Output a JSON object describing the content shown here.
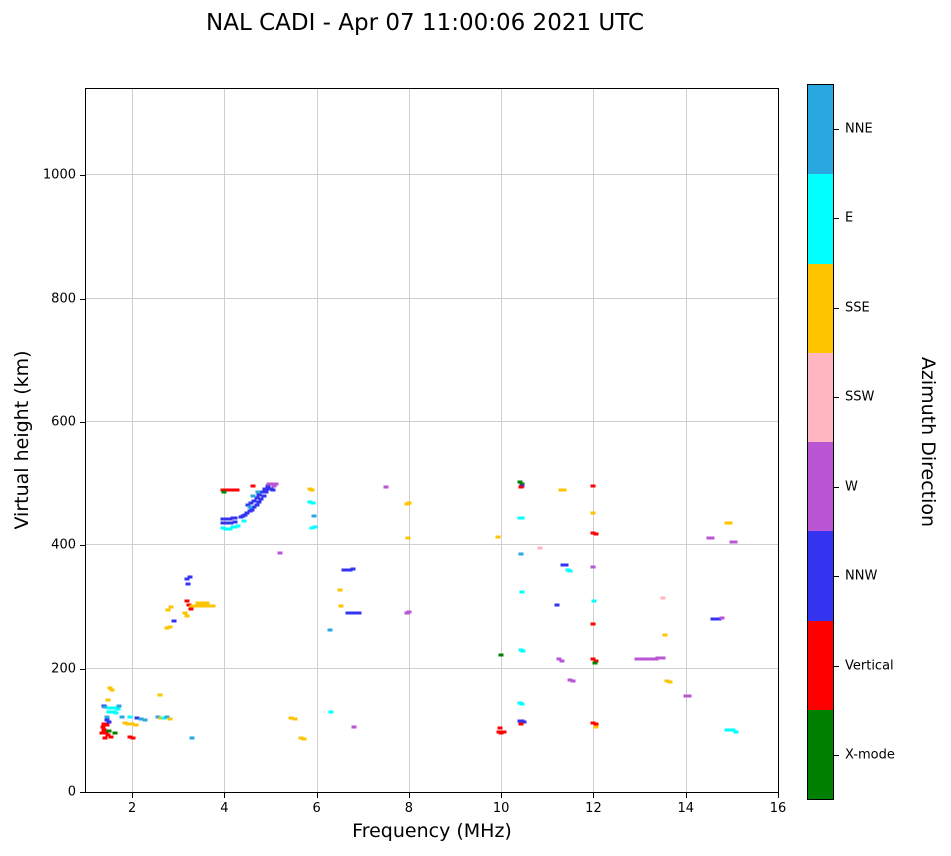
{
  "title": "NAL CADI - Apr 07 11:00:06 2021 UTC",
  "chart_data": {
    "type": "scatter",
    "title": "NAL CADI - Apr 07 11:00:06 2021 UTC",
    "xlabel": "Frequency (MHz)",
    "ylabel": "Virtual height (km)",
    "colorbar_label": "Azimuth Direction",
    "xlim": [
      1,
      16
    ],
    "ylim": [
      0,
      1140
    ],
    "xticks": [
      2,
      4,
      6,
      8,
      10,
      12,
      14,
      16
    ],
    "yticks": [
      0,
      200,
      400,
      600,
      800,
      1000
    ],
    "grid": true,
    "legend_position": "right-colorbar",
    "categories": [
      {
        "name": "NNE",
        "color": "#29A8E0"
      },
      {
        "name": "E",
        "color": "#00FFFF"
      },
      {
        "name": "SSE",
        "color": "#FFC400"
      },
      {
        "name": "SSW",
        "color": "#FFB6C1"
      },
      {
        "name": "W",
        "color": "#BA55D3"
      },
      {
        "name": "NNW",
        "color": "#3333F0"
      },
      {
        "name": "Vertical",
        "color": "#FF0000"
      },
      {
        "name": "X-mode",
        "color": "#008000"
      }
    ],
    "points": [
      [
        1.38,
        140,
        5
      ],
      [
        1.42,
        138,
        0
      ],
      [
        1.52,
        168,
        2
      ],
      [
        1.57,
        166,
        2
      ],
      [
        1.47,
        150,
        2
      ],
      [
        1.5,
        137,
        1
      ],
      [
        1.55,
        137,
        1
      ],
      [
        1.6,
        137,
        1
      ],
      [
        1.65,
        136,
        1
      ],
      [
        1.7,
        134,
        1
      ],
      [
        1.5,
        129,
        1
      ],
      [
        1.55,
        129,
        1
      ],
      [
        1.6,
        129,
        1
      ],
      [
        1.65,
        128,
        1
      ],
      [
        1.72,
        140,
        0
      ],
      [
        1.78,
        122,
        0
      ],
      [
        1.45,
        122,
        0
      ],
      [
        1.45,
        117,
        5
      ],
      [
        1.5,
        114,
        5
      ],
      [
        1.4,
        110,
        6
      ],
      [
        1.45,
        108,
        6
      ],
      [
        1.4,
        101,
        6
      ],
      [
        1.44,
        96,
        6
      ],
      [
        1.48,
        92,
        6
      ],
      [
        1.42,
        88,
        6
      ],
      [
        1.55,
        90,
        6
      ],
      [
        1.5,
        99,
        7
      ],
      [
        1.62,
        95,
        7
      ],
      [
        1.85,
        112,
        2
      ],
      [
        1.92,
        110,
        2
      ],
      [
        2.0,
        110,
        2
      ],
      [
        2.08,
        108,
        2
      ],
      [
        1.95,
        90,
        6
      ],
      [
        2.02,
        88,
        6
      ],
      [
        2.1,
        120,
        5
      ],
      [
        1.95,
        122,
        1
      ],
      [
        2.2,
        118,
        0
      ],
      [
        2.28,
        116,
        0
      ],
      [
        1.35,
        95,
        6
      ],
      [
        1.36,
        105,
        6
      ],
      [
        2.55,
        122,
        0
      ],
      [
        2.62,
        120,
        2
      ],
      [
        2.68,
        120,
        1
      ],
      [
        2.76,
        122,
        0
      ],
      [
        2.82,
        118,
        2
      ],
      [
        2.6,
        158,
        2
      ],
      [
        2.75,
        266,
        2
      ],
      [
        2.82,
        268,
        2
      ],
      [
        2.78,
        295,
        2
      ],
      [
        2.85,
        300,
        2
      ],
      [
        2.9,
        278,
        5
      ],
      [
        3.2,
        345,
        5
      ],
      [
        3.26,
        348,
        5
      ],
      [
        3.22,
        338,
        5
      ],
      [
        3.2,
        310,
        6
      ],
      [
        3.24,
        304,
        6
      ],
      [
        3.27,
        296,
        6
      ],
      [
        3.15,
        290,
        2
      ],
      [
        3.18,
        285,
        2
      ],
      [
        3.3,
        302,
        2
      ],
      [
        3.35,
        302,
        2
      ],
      [
        3.4,
        302,
        2
      ],
      [
        3.45,
        302,
        2
      ],
      [
        3.5,
        302,
        2
      ],
      [
        3.55,
        302,
        2
      ],
      [
        3.6,
        302,
        2
      ],
      [
        3.65,
        302,
        2
      ],
      [
        3.7,
        302,
        2
      ],
      [
        3.75,
        302,
        2
      ],
      [
        3.42,
        307,
        2
      ],
      [
        3.52,
        307,
        2
      ],
      [
        3.62,
        307,
        2
      ],
      [
        3.3,
        88,
        0
      ],
      [
        3.98,
        490,
        6
      ],
      [
        4.03,
        490,
        6
      ],
      [
        4.08,
        490,
        6
      ],
      [
        4.13,
        490,
        6
      ],
      [
        4.18,
        490,
        6
      ],
      [
        4.23,
        490,
        6
      ],
      [
        4.28,
        490,
        6
      ],
      [
        4.0,
        486,
        7
      ],
      [
        3.98,
        443,
        5
      ],
      [
        4.03,
        443,
        5
      ],
      [
        4.08,
        443,
        5
      ],
      [
        4.13,
        443,
        5
      ],
      [
        4.18,
        444,
        5
      ],
      [
        4.23,
        445,
        5
      ],
      [
        3.98,
        437,
        5
      ],
      [
        4.06,
        436,
        5
      ],
      [
        4.14,
        437,
        5
      ],
      [
        4.22,
        438,
        5
      ],
      [
        3.98,
        428,
        1
      ],
      [
        4.03,
        427,
        1
      ],
      [
        4.08,
        426,
        1
      ],
      [
        4.13,
        427,
        1
      ],
      [
        4.18,
        429,
        1
      ],
      [
        4.24,
        430,
        1
      ],
      [
        4.3,
        432,
        1
      ],
      [
        4.35,
        446,
        5
      ],
      [
        4.4,
        448,
        5
      ],
      [
        4.45,
        450,
        5
      ],
      [
        4.5,
        452,
        5
      ],
      [
        4.55,
        455,
        5
      ],
      [
        4.6,
        458,
        5
      ],
      [
        4.65,
        462,
        5
      ],
      [
        4.7,
        466,
        5
      ],
      [
        4.75,
        470,
        5
      ],
      [
        4.8,
        475,
        5
      ],
      [
        4.85,
        480,
        5
      ],
      [
        4.9,
        486,
        5
      ],
      [
        4.95,
        491,
        5
      ],
      [
        4.52,
        466,
        5
      ],
      [
        4.58,
        469,
        5
      ],
      [
        4.64,
        472,
        5
      ],
      [
        4.7,
        477,
        5
      ],
      [
        4.76,
        482,
        5
      ],
      [
        4.82,
        487,
        5
      ],
      [
        4.88,
        492,
        5
      ],
      [
        4.94,
        497,
        5
      ],
      [
        4.62,
        480,
        0
      ],
      [
        4.72,
        487,
        0
      ],
      [
        4.55,
        462,
        0
      ],
      [
        4.42,
        440,
        1
      ],
      [
        4.62,
        497,
        6
      ],
      [
        4.97,
        499,
        4
      ],
      [
        5.03,
        500,
        4
      ],
      [
        5.08,
        497,
        4
      ],
      [
        5.12,
        500,
        4
      ],
      [
        5.0,
        492,
        5
      ],
      [
        5.06,
        490,
        5
      ],
      [
        5.2,
        388,
        4
      ],
      [
        5.85,
        492,
        2
      ],
      [
        5.9,
        490,
        2
      ],
      [
        5.86,
        470,
        1
      ],
      [
        5.92,
        468,
        1
      ],
      [
        5.95,
        447,
        0
      ],
      [
        5.9,
        428,
        1
      ],
      [
        5.96,
        430,
        1
      ],
      [
        5.45,
        120,
        2
      ],
      [
        5.52,
        118,
        2
      ],
      [
        5.65,
        88,
        2
      ],
      [
        5.72,
        86,
        2
      ],
      [
        6.3,
        130,
        1
      ],
      [
        6.28,
        262,
        0
      ],
      [
        6.5,
        328,
        2
      ],
      [
        6.52,
        302,
        2
      ],
      [
        6.6,
        360,
        5
      ],
      [
        6.66,
        360,
        5
      ],
      [
        6.72,
        360,
        5
      ],
      [
        6.78,
        361,
        5
      ],
      [
        6.68,
        290,
        5
      ],
      [
        6.74,
        290,
        5
      ],
      [
        6.8,
        290,
        5
      ],
      [
        6.86,
        290,
        5
      ],
      [
        6.92,
        291,
        5
      ],
      [
        6.82,
        105,
        4
      ],
      [
        7.5,
        495,
        4
      ],
      [
        7.95,
        467,
        2
      ],
      [
        8.0,
        468,
        2
      ],
      [
        7.98,
        412,
        2
      ],
      [
        7.95,
        290,
        4
      ],
      [
        8.0,
        292,
        4
      ],
      [
        9.93,
        413,
        2
      ],
      [
        10.0,
        222,
        7
      ],
      [
        9.95,
        97,
        6
      ],
      [
        10.0,
        95,
        6
      ],
      [
        10.05,
        98,
        6
      ],
      [
        9.97,
        103,
        6
      ],
      [
        10.4,
        502,
        7
      ],
      [
        10.46,
        500,
        7
      ],
      [
        10.46,
        497,
        5
      ],
      [
        10.42,
        494,
        6
      ],
      [
        10.4,
        444,
        1
      ],
      [
        10.46,
        445,
        1
      ],
      [
        10.42,
        386,
        0
      ],
      [
        10.46,
        325,
        1
      ],
      [
        10.85,
        395,
        3
      ],
      [
        10.42,
        230,
        1
      ],
      [
        10.47,
        228,
        1
      ],
      [
        10.4,
        145,
        1
      ],
      [
        10.45,
        143,
        1
      ],
      [
        10.4,
        115,
        5
      ],
      [
        10.45,
        115,
        5
      ],
      [
        10.5,
        113,
        5
      ],
      [
        10.44,
        110,
        6
      ],
      [
        11.3,
        490,
        2
      ],
      [
        11.36,
        490,
        2
      ],
      [
        11.35,
        368,
        5
      ],
      [
        11.41,
        368,
        5
      ],
      [
        11.45,
        360,
        1
      ],
      [
        11.5,
        358,
        1
      ],
      [
        11.2,
        303,
        5
      ],
      [
        11.25,
        215,
        4
      ],
      [
        11.31,
        213,
        4
      ],
      [
        11.5,
        182,
        4
      ],
      [
        11.56,
        180,
        4
      ],
      [
        12.0,
        497,
        6
      ],
      [
        12.0,
        452,
        2
      ],
      [
        12.0,
        420,
        6
      ],
      [
        12.05,
        418,
        6
      ],
      [
        12.0,
        365,
        4
      ],
      [
        12.02,
        310,
        1
      ],
      [
        12.0,
        273,
        6
      ],
      [
        12.0,
        215,
        6
      ],
      [
        12.05,
        213,
        6
      ],
      [
        12.03,
        210,
        7
      ],
      [
        12.0,
        112,
        6
      ],
      [
        12.05,
        110,
        6
      ],
      [
        12.05,
        106,
        2
      ],
      [
        12.95,
        215,
        4
      ],
      [
        13.0,
        215,
        4
      ],
      [
        13.05,
        215,
        4
      ],
      [
        13.1,
        215,
        4
      ],
      [
        13.15,
        215,
        4
      ],
      [
        13.2,
        216,
        4
      ],
      [
        13.25,
        216,
        4
      ],
      [
        13.3,
        216,
        4
      ],
      [
        13.35,
        216,
        4
      ],
      [
        13.4,
        217,
        4
      ],
      [
        13.45,
        217,
        4
      ],
      [
        13.5,
        217,
        4
      ],
      [
        13.5,
        315,
        3
      ],
      [
        13.55,
        255,
        2
      ],
      [
        13.6,
        180,
        2
      ],
      [
        13.66,
        178,
        2
      ],
      [
        14.0,
        155,
        4
      ],
      [
        14.06,
        155,
        4
      ],
      [
        14.6,
        280,
        5
      ],
      [
        14.66,
        280,
        5
      ],
      [
        14.72,
        281,
        5
      ],
      [
        14.78,
        282,
        4
      ],
      [
        14.5,
        412,
        4
      ],
      [
        14.56,
        412,
        4
      ],
      [
        14.9,
        437,
        2
      ],
      [
        14.96,
        437,
        2
      ],
      [
        15.0,
        405,
        4
      ],
      [
        15.06,
        405,
        4
      ],
      [
        14.9,
        100,
        1
      ],
      [
        14.96,
        100,
        1
      ],
      [
        15.02,
        100,
        1
      ],
      [
        15.08,
        98,
        1
      ]
    ]
  }
}
